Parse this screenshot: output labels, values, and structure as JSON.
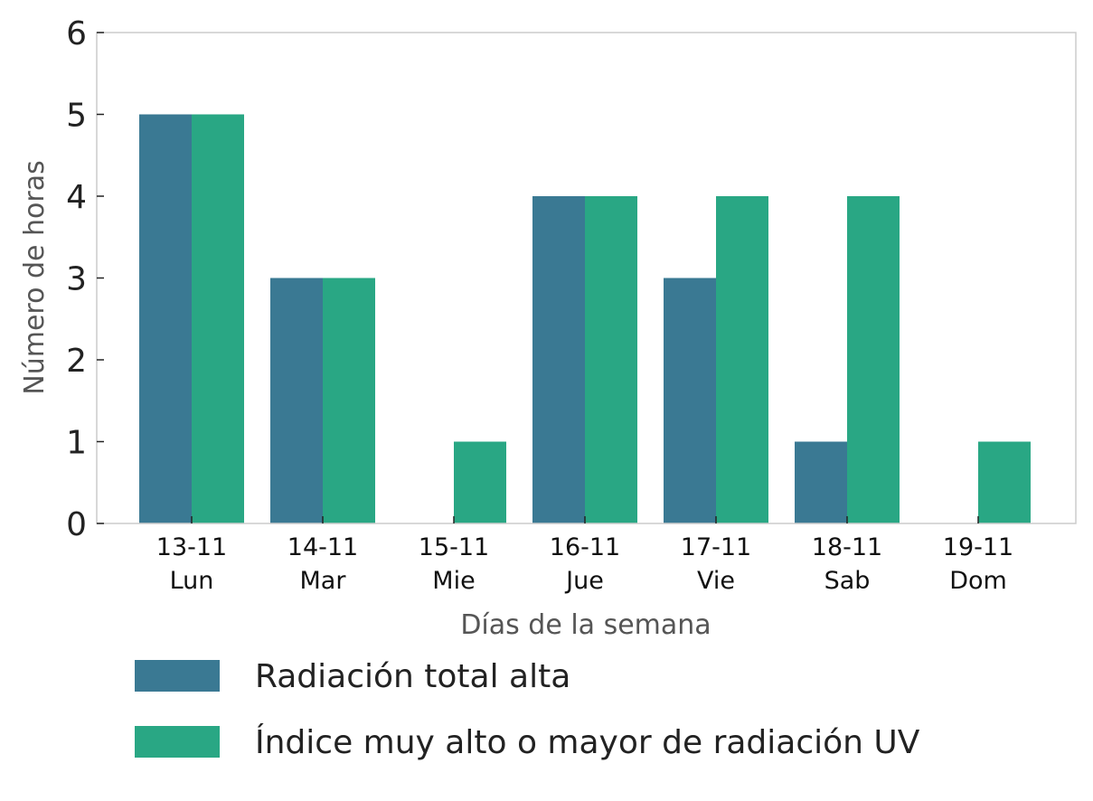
{
  "chart_data": {
    "type": "bar",
    "title": "",
    "xlabel": "Días de la semana",
    "ylabel": "Número de horas",
    "ylim": [
      0,
      6
    ],
    "yticks": [
      0,
      1,
      2,
      3,
      4,
      5,
      6
    ],
    "grid": false,
    "legend_position": "bottom",
    "categories": [
      {
        "date": "13-11",
        "day": "Lun"
      },
      {
        "date": "14-11",
        "day": "Mar"
      },
      {
        "date": "15-11",
        "day": "Mie"
      },
      {
        "date": "16-11",
        "day": "Jue"
      },
      {
        "date": "17-11",
        "day": "Vie"
      },
      {
        "date": "18-11",
        "day": "Sab"
      },
      {
        "date": "19-11",
        "day": "Dom"
      }
    ],
    "series": [
      {
        "name": "Radiación total alta",
        "color": "#3a7993",
        "values": [
          5,
          3,
          0,
          4,
          3,
          1,
          0
        ]
      },
      {
        "name": "Índice muy alto o mayor de radiación UV",
        "color": "#29a784",
        "values": [
          5,
          3,
          1,
          4,
          4,
          4,
          1
        ]
      }
    ]
  }
}
